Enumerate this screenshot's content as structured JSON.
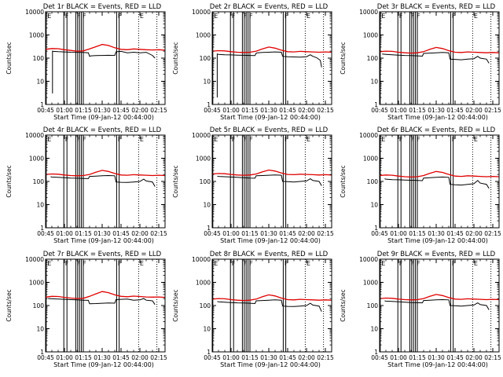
{
  "colors": {
    "events": "#000000",
    "lld": "#e00000",
    "axis": "#000000",
    "background": "#ffffff"
  },
  "shared": {
    "xlabel": "Start Time (09-Jan-12 00:44:00)",
    "ylabel": "Counts/sec",
    "xticks": [
      {
        "t": 0,
        "label": "00:45"
      },
      {
        "t": 15,
        "label": "01:00"
      },
      {
        "t": 30,
        "label": "01:15"
      },
      {
        "t": 45,
        "label": "01:30"
      },
      {
        "t": 60,
        "label": "01:45"
      },
      {
        "t": 75,
        "label": "02:00"
      },
      {
        "t": 90,
        "label": "02:15"
      }
    ],
    "yticks": [
      {
        "v": 1,
        "label": "1"
      },
      {
        "v": 10,
        "label": "10"
      },
      {
        "v": 100,
        "label": "100"
      },
      {
        "v": 1000,
        "label": "1000"
      },
      {
        "v": 10000,
        "label": "10000"
      }
    ],
    "markers": [
      {
        "t": 0.5,
        "style": "solid",
        "label": "E"
      },
      {
        "t": 14.5,
        "style": "solid",
        "label": "F"
      },
      {
        "t": 17.0,
        "style": "solid",
        "label": ""
      },
      {
        "t": 24.0,
        "style": "solid",
        "label": "F"
      },
      {
        "t": 25.5,
        "style": "solid",
        "label": ""
      },
      {
        "t": 27.0,
        "style": "solid",
        "label": ""
      },
      {
        "t": 28.5,
        "style": "solid",
        "label": "F"
      },
      {
        "t": 30.0,
        "style": "solid",
        "label": ""
      },
      {
        "t": 56.5,
        "style": "solid",
        "label": "F"
      },
      {
        "t": 58.5,
        "style": "solid",
        "label": ""
      },
      {
        "t": 74.0,
        "style": "dotted",
        "label": "E"
      },
      {
        "t": 88.5,
        "style": "dotted",
        "label": ""
      }
    ]
  },
  "chart_data": [
    {
      "type": "line",
      "title": "Det 1r BLACK = Events, RED = LLD",
      "xlabel": "Start Time (09-Jan-12 00:44:00)",
      "ylabel": "Counts/sec",
      "xlim": [
        0,
        95
      ],
      "ylim": [
        1,
        10000
      ],
      "yscale": "log",
      "series": [
        {
          "name": "Events",
          "color": "#000000",
          "x": [
            5.5,
            5.5,
            6,
            10,
            15,
            20,
            25,
            30,
            34,
            35,
            36,
            40,
            45,
            50,
            55,
            56,
            57,
            60,
            65,
            70,
            75,
            80,
            85,
            87
          ],
          "y": [
            3,
            200,
            195,
            190,
            185,
            180,
            178,
            175,
            170,
            120,
            125,
            128,
            130,
            132,
            130,
            185,
            190,
            195,
            170,
            180,
            170,
            178,
            130,
            100
          ]
        },
        {
          "name": "LLD",
          "color": "#e00000",
          "x": [
            0,
            5,
            10,
            15,
            20,
            25,
            30,
            35,
            40,
            45,
            50,
            55,
            60,
            65,
            70,
            75,
            80,
            85,
            90,
            95
          ],
          "y": [
            240,
            260,
            255,
            230,
            215,
            200,
            205,
            250,
            310,
            390,
            350,
            280,
            240,
            230,
            250,
            240,
            230,
            225,
            230,
            220
          ]
        }
      ]
    },
    {
      "type": "line",
      "title": "Det 2r BLACK = Events, RED = LLD",
      "xlabel": "Start Time (09-Jan-12 00:44:00)",
      "ylabel": "Counts/sec",
      "xlim": [
        0,
        95
      ],
      "ylim": [
        1,
        10000
      ],
      "yscale": "log",
      "series": [
        {
          "name": "Events",
          "color": "#000000",
          "x": [
            4,
            4,
            5,
            10,
            15,
            20,
            25,
            30,
            34,
            35,
            36,
            40,
            45,
            50,
            55,
            56,
            57,
            60,
            65,
            70,
            75,
            78,
            80,
            83,
            86,
            87
          ],
          "y": [
            2,
            150,
            145,
            140,
            138,
            135,
            132,
            130,
            128,
            165,
            170,
            175,
            180,
            185,
            180,
            120,
            118,
            115,
            112,
            110,
            115,
            140,
            120,
            105,
            80,
            40
          ]
        },
        {
          "name": "LLD",
          "color": "#e00000",
          "x": [
            0,
            5,
            10,
            15,
            20,
            25,
            30,
            35,
            40,
            45,
            50,
            55,
            60,
            65,
            70,
            75,
            80,
            85,
            90,
            95
          ],
          "y": [
            200,
            210,
            205,
            190,
            180,
            175,
            180,
            200,
            250,
            300,
            270,
            220,
            190,
            185,
            195,
            190,
            185,
            180,
            185,
            180
          ]
        }
      ]
    },
    {
      "type": "line",
      "title": "Det 3r BLACK = Events, RED = LLD",
      "xlabel": "Start Time (09-Jan-12 00:44:00)",
      "ylabel": "Counts/sec",
      "xlim": [
        0,
        95
      ],
      "ylim": [
        1,
        10000
      ],
      "yscale": "log",
      "series": [
        {
          "name": "Events",
          "color": "#000000",
          "x": [
            2,
            5,
            10,
            15,
            20,
            25,
            30,
            34,
            35,
            40,
            45,
            50,
            55,
            56,
            60,
            65,
            70,
            75,
            78,
            80,
            85,
            87
          ],
          "y": [
            150,
            145,
            140,
            135,
            130,
            128,
            125,
            122,
            160,
            165,
            170,
            175,
            170,
            90,
            88,
            85,
            90,
            95,
            120,
            100,
            90,
            60
          ]
        },
        {
          "name": "LLD",
          "color": "#e00000",
          "x": [
            0,
            5,
            10,
            15,
            20,
            25,
            30,
            35,
            40,
            45,
            50,
            55,
            60,
            65,
            70,
            75,
            80,
            85,
            90,
            95
          ],
          "y": [
            190,
            200,
            195,
            180,
            170,
            165,
            170,
            190,
            240,
            290,
            260,
            210,
            180,
            175,
            185,
            180,
            175,
            170,
            175,
            170
          ]
        }
      ]
    },
    {
      "type": "line",
      "title": "Det 4r BLACK = Events, RED = LLD",
      "xlabel": "Start Time (09-Jan-12 00:44:00)",
      "ylabel": "Counts/sec",
      "xlim": [
        0,
        95
      ],
      "ylim": [
        1,
        10000
      ],
      "yscale": "log",
      "series": [
        {
          "name": "Events",
          "color": "#000000",
          "x": [
            4,
            5,
            10,
            15,
            20,
            25,
            30,
            34,
            35,
            40,
            45,
            50,
            55,
            56,
            60,
            65,
            70,
            75,
            78,
            80,
            85,
            87
          ],
          "y": [
            160,
            155,
            150,
            145,
            140,
            138,
            135,
            132,
            165,
            170,
            175,
            180,
            175,
            95,
            92,
            90,
            95,
            100,
            125,
            105,
            95,
            60
          ]
        },
        {
          "name": "LLD",
          "color": "#e00000",
          "x": [
            0,
            5,
            10,
            15,
            20,
            25,
            30,
            35,
            40,
            45,
            50,
            55,
            60,
            65,
            70,
            75,
            80,
            85,
            90,
            95
          ],
          "y": [
            200,
            210,
            205,
            190,
            180,
            175,
            180,
            200,
            250,
            300,
            270,
            220,
            190,
            185,
            195,
            190,
            185,
            180,
            185,
            180
          ]
        }
      ]
    },
    {
      "type": "line",
      "title": "Det 5r BLACK = Events, RED = LLD",
      "xlabel": "Start Time (09-Jan-12 00:44:00)",
      "ylabel": "Counts/sec",
      "xlim": [
        0,
        95
      ],
      "ylim": [
        1,
        10000
      ],
      "yscale": "log",
      "series": [
        {
          "name": "Events",
          "color": "#000000",
          "x": [
            4,
            5,
            10,
            15,
            20,
            25,
            30,
            34,
            35,
            40,
            45,
            50,
            55,
            56,
            60,
            65,
            70,
            75,
            78,
            80,
            85,
            87
          ],
          "y": [
            170,
            165,
            160,
            155,
            150,
            145,
            140,
            138,
            175,
            180,
            185,
            190,
            185,
            100,
            98,
            95,
            100,
            105,
            130,
            110,
            100,
            65
          ]
        },
        {
          "name": "LLD",
          "color": "#e00000",
          "x": [
            0,
            5,
            10,
            15,
            20,
            25,
            30,
            35,
            40,
            45,
            50,
            55,
            60,
            65,
            70,
            75,
            80,
            85,
            90,
            95
          ],
          "y": [
            210,
            220,
            215,
            200,
            190,
            185,
            190,
            210,
            260,
            310,
            280,
            230,
            200,
            195,
            205,
            200,
            195,
            190,
            195,
            190
          ]
        }
      ]
    },
    {
      "type": "line",
      "title": "Det 6r BLACK = Events, RED = LLD",
      "xlabel": "Start Time (09-Jan-12 00:44:00)",
      "ylabel": "Counts/sec",
      "xlim": [
        0,
        95
      ],
      "ylim": [
        1,
        10000
      ],
      "yscale": "log",
      "series": [
        {
          "name": "Events",
          "color": "#000000",
          "x": [
            4,
            5,
            10,
            15,
            20,
            25,
            30,
            34,
            35,
            40,
            45,
            50,
            55,
            56,
            60,
            65,
            70,
            75,
            78,
            80,
            85,
            87
          ],
          "y": [
            130,
            125,
            120,
            118,
            115,
            112,
            110,
            108,
            140,
            145,
            150,
            155,
            150,
            75,
            72,
            70,
            75,
            80,
            110,
            85,
            75,
            50
          ]
        },
        {
          "name": "LLD",
          "color": "#e00000",
          "x": [
            0,
            5,
            10,
            15,
            20,
            25,
            30,
            35,
            40,
            45,
            50,
            55,
            60,
            65,
            70,
            75,
            80,
            85,
            90,
            95
          ],
          "y": [
            180,
            190,
            185,
            170,
            160,
            155,
            160,
            180,
            225,
            270,
            245,
            200,
            170,
            165,
            175,
            170,
            165,
            160,
            165,
            160
          ]
        }
      ]
    },
    {
      "type": "line",
      "title": "Det 7r BLACK = Events, RED = LLD",
      "xlabel": "Start Time (09-Jan-12 00:44:00)",
      "ylabel": "Counts/sec",
      "xlim": [
        0,
        95
      ],
      "ylim": [
        1,
        10000
      ],
      "yscale": "log",
      "series": [
        {
          "name": "Events",
          "color": "#000000",
          "x": [
            2,
            5,
            10,
            15,
            20,
            25,
            30,
            34,
            35,
            40,
            45,
            50,
            55,
            56,
            60,
            65,
            70,
            75,
            78,
            80,
            85,
            87
          ],
          "y": [
            200,
            195,
            190,
            185,
            180,
            175,
            170,
            168,
            120,
            122,
            125,
            128,
            126,
            180,
            185,
            190,
            170,
            175,
            200,
            170,
            160,
            110
          ]
        },
        {
          "name": "LLD",
          "color": "#e00000",
          "x": [
            0,
            5,
            10,
            15,
            20,
            25,
            30,
            35,
            40,
            45,
            50,
            55,
            60,
            65,
            70,
            75,
            80,
            85,
            90,
            95
          ],
          "y": [
            230,
            250,
            245,
            225,
            210,
            200,
            205,
            250,
            320,
            400,
            360,
            290,
            250,
            240,
            255,
            245,
            235,
            230,
            235,
            225
          ]
        }
      ]
    },
    {
      "type": "line",
      "title": "Det 8r BLACK = Events, RED = LLD",
      "xlabel": "Start Time (09-Jan-12 00:44:00)",
      "ylabel": "Counts/sec",
      "xlim": [
        0,
        95
      ],
      "ylim": [
        1,
        10000
      ],
      "yscale": "log",
      "series": [
        {
          "name": "Events",
          "color": "#000000",
          "x": [
            4,
            5,
            10,
            15,
            20,
            25,
            30,
            34,
            35,
            40,
            45,
            50,
            55,
            56,
            60,
            65,
            70,
            75,
            78,
            80,
            85,
            87
          ],
          "y": [
            150,
            145,
            140,
            135,
            130,
            128,
            125,
            122,
            160,
            165,
            170,
            175,
            170,
            95,
            92,
            90,
            95,
            100,
            125,
            105,
            95,
            55
          ]
        },
        {
          "name": "LLD",
          "color": "#e00000",
          "x": [
            0,
            5,
            10,
            15,
            20,
            25,
            30,
            35,
            40,
            45,
            50,
            55,
            60,
            65,
            70,
            75,
            80,
            85,
            90,
            95
          ],
          "y": [
            190,
            200,
            195,
            180,
            170,
            165,
            170,
            190,
            240,
            290,
            260,
            210,
            180,
            175,
            185,
            180,
            175,
            170,
            175,
            170
          ]
        }
      ]
    },
    {
      "type": "line",
      "title": "Det 9r BLACK = Events, RED = LLD",
      "xlabel": "Start Time (09-Jan-12 00:44:00)",
      "ylabel": "Counts/sec",
      "xlim": [
        0,
        95
      ],
      "ylim": [
        1,
        10000
      ],
      "yscale": "log",
      "series": [
        {
          "name": "Events",
          "color": "#000000",
          "x": [
            4,
            5,
            10,
            15,
            20,
            25,
            30,
            34,
            35,
            40,
            45,
            50,
            55,
            56,
            60,
            65,
            70,
            75,
            78,
            80,
            85,
            87
          ],
          "y": [
            160,
            155,
            150,
            145,
            140,
            135,
            132,
            130,
            165,
            170,
            175,
            180,
            175,
            100,
            98,
            95,
            100,
            105,
            130,
            110,
            100,
            65
          ]
        },
        {
          "name": "LLD",
          "color": "#e00000",
          "x": [
            0,
            5,
            10,
            15,
            20,
            25,
            30,
            35,
            40,
            45,
            50,
            55,
            60,
            65,
            70,
            75,
            80,
            85,
            90,
            95
          ],
          "y": [
            200,
            210,
            205,
            190,
            180,
            175,
            180,
            200,
            250,
            300,
            270,
            220,
            190,
            185,
            195,
            190,
            185,
            180,
            185,
            180
          ]
        }
      ]
    }
  ]
}
